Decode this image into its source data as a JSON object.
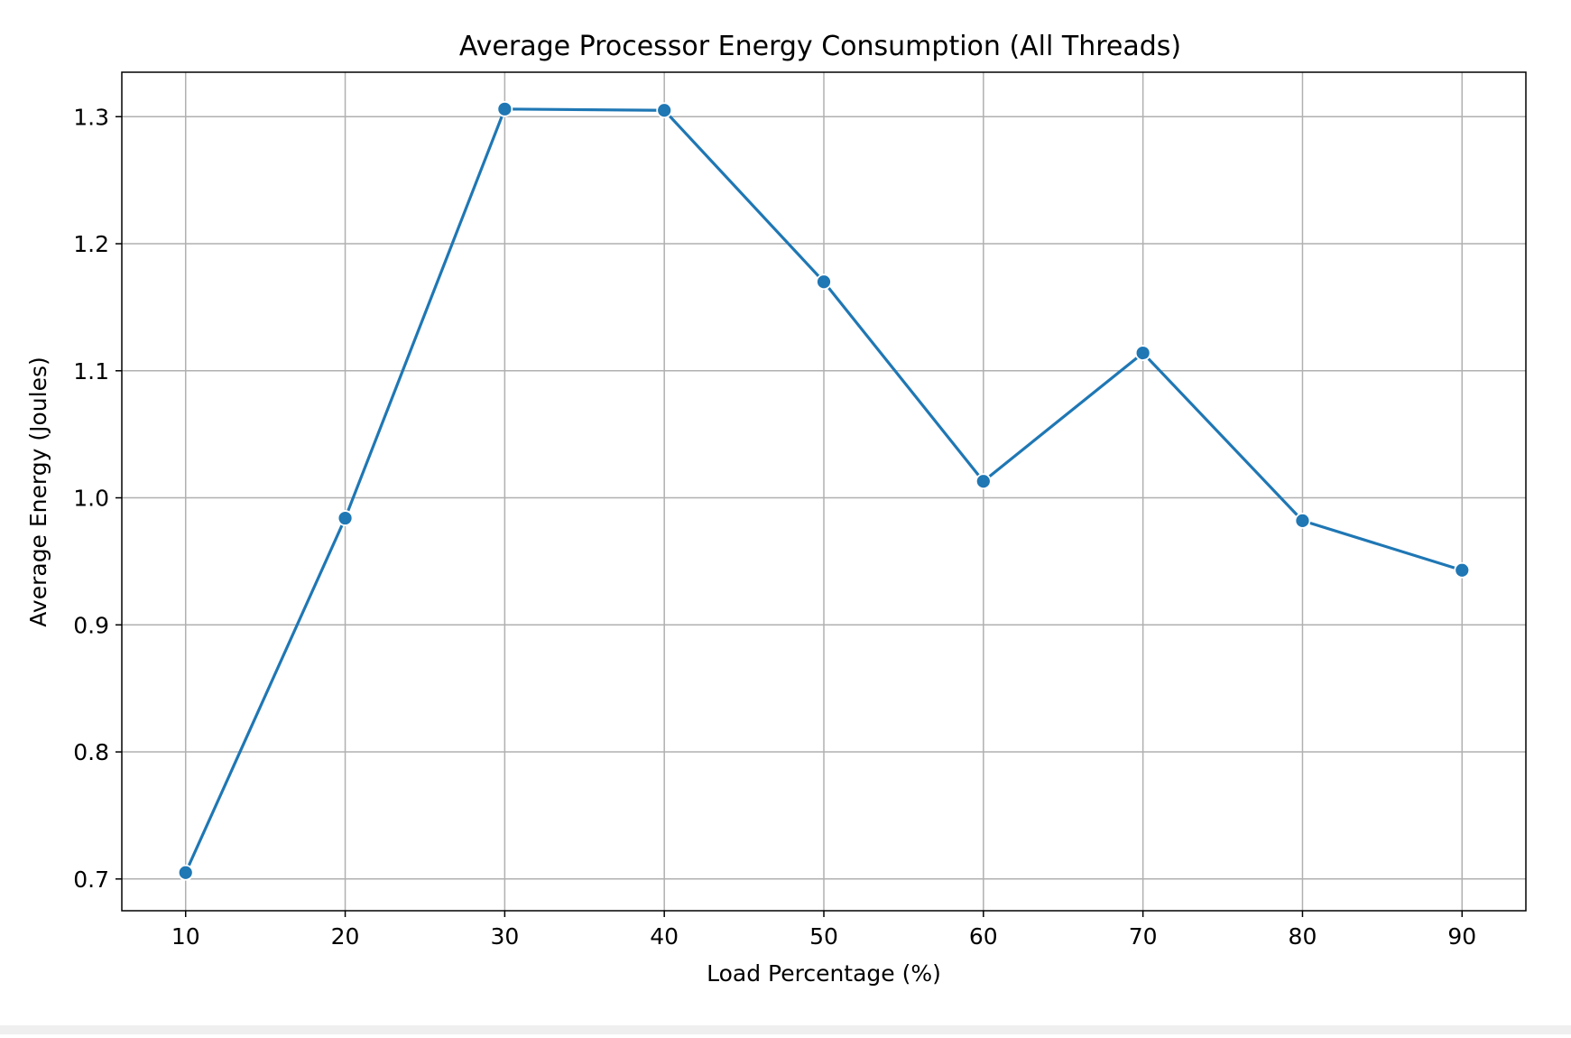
{
  "chart_data": {
    "type": "line",
    "title": "Average Processor Energy Consumption (All Threads)",
    "xlabel": "Load Percentage (%)",
    "ylabel": "Average Energy (Joules)",
    "x": [
      10,
      20,
      30,
      40,
      50,
      60,
      70,
      80,
      90
    ],
    "series": [
      {
        "values": [
          0.705,
          0.984,
          1.306,
          1.305,
          1.17,
          1.013,
          1.114,
          0.982,
          0.943
        ]
      }
    ],
    "xlim": [
      6,
      94
    ],
    "ylim": [
      0.675,
      1.335
    ],
    "xticks": [
      10,
      20,
      30,
      40,
      50,
      60,
      70,
      80,
      90
    ],
    "yticks": [
      0.7,
      0.8,
      0.9,
      1.0,
      1.1,
      1.2,
      1.3
    ],
    "grid": true,
    "legend": "none",
    "colors": {
      "line": "#1f77b4",
      "marker_edge": "#ffffff",
      "grid": "#b0b0b0",
      "axes": "#000000"
    }
  }
}
